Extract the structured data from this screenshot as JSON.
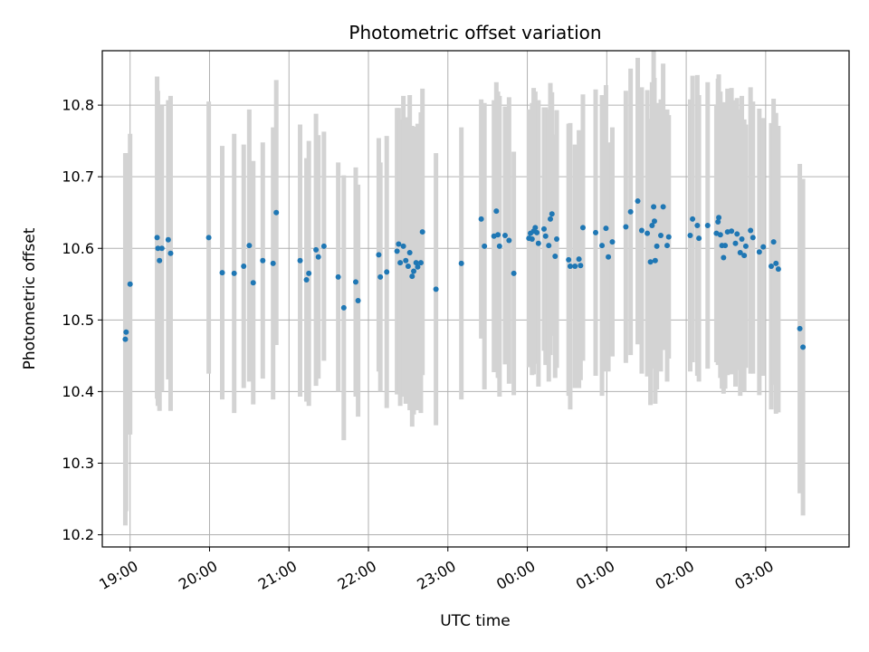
{
  "chart_data": {
    "type": "scatter",
    "title": "Photometric offset variation",
    "xlabel": "UTC time",
    "ylabel": "Photometric offset",
    "x_unit": "hours since 19:00 UTC",
    "xlim": [
      -0.35,
      9.05
    ],
    "ylim": [
      10.183,
      10.876
    ],
    "grid": true,
    "colors": {
      "point": "#1f77b4",
      "errorbar": "#d3d3d3",
      "grid": "#b0b0b0",
      "axis": "#000000"
    },
    "x_ticks": [
      {
        "x": 0,
        "label": "19:00"
      },
      {
        "x": 1,
        "label": "20:00"
      },
      {
        "x": 2,
        "label": "21:00"
      },
      {
        "x": 3,
        "label": "22:00"
      },
      {
        "x": 4,
        "label": "23:00"
      },
      {
        "x": 5,
        "label": "00:00"
      },
      {
        "x": 6,
        "label": "01:00"
      },
      {
        "x": 7,
        "label": "02:00"
      },
      {
        "x": 8,
        "label": "03:00"
      }
    ],
    "y_ticks": [
      {
        "y": 10.2,
        "label": "10.2"
      },
      {
        "y": 10.3,
        "label": "10.3"
      },
      {
        "y": 10.4,
        "label": "10.4"
      },
      {
        "y": 10.5,
        "label": "10.5"
      },
      {
        "y": 10.6,
        "label": "10.6"
      },
      {
        "y": 10.7,
        "label": "10.7"
      },
      {
        "y": 10.8,
        "label": "10.8"
      }
    ],
    "series": [
      {
        "name": "Photometric offset",
        "columns": [
          "x",
          "y",
          "err"
        ],
        "points": [
          [
            -0.06,
            10.473,
            0.26
          ],
          [
            -0.05,
            10.483,
            0.25
          ],
          [
            0.0,
            10.55,
            0.21
          ],
          [
            0.34,
            10.615,
            0.225
          ],
          [
            0.35,
            10.6,
            0.22
          ],
          [
            0.37,
            10.583,
            0.21
          ],
          [
            0.4,
            10.6,
            0.2
          ],
          [
            0.48,
            10.612,
            0.195
          ],
          [
            0.51,
            10.593,
            0.22
          ],
          [
            0.99,
            10.615,
            0.19
          ],
          [
            1.16,
            10.566,
            0.177
          ],
          [
            1.31,
            10.565,
            0.195
          ],
          [
            1.43,
            10.575,
            0.17
          ],
          [
            1.5,
            10.604,
            0.19
          ],
          [
            1.55,
            10.552,
            0.17
          ],
          [
            1.67,
            10.583,
            0.165
          ],
          [
            1.8,
            10.579,
            0.19
          ],
          [
            1.84,
            10.65,
            0.185
          ],
          [
            2.14,
            10.583,
            0.19
          ],
          [
            2.22,
            10.556,
            0.17
          ],
          [
            2.25,
            10.565,
            0.185
          ],
          [
            2.34,
            10.598,
            0.19
          ],
          [
            2.37,
            10.588,
            0.17
          ],
          [
            2.44,
            10.603,
            0.16
          ],
          [
            2.62,
            10.56,
            0.16
          ],
          [
            2.69,
            10.517,
            0.185
          ],
          [
            2.84,
            10.553,
            0.16
          ],
          [
            2.87,
            10.527,
            0.162
          ],
          [
            3.13,
            10.591,
            0.163
          ],
          [
            3.15,
            10.56,
            0.16
          ],
          [
            3.23,
            10.567,
            0.19
          ],
          [
            3.36,
            10.596,
            0.2
          ],
          [
            3.38,
            10.606,
            0.19
          ],
          [
            3.4,
            10.58,
            0.2
          ],
          [
            3.44,
            10.603,
            0.21
          ],
          [
            3.47,
            10.583,
            0.2
          ],
          [
            3.5,
            10.575,
            0.19
          ],
          [
            3.52,
            10.594,
            0.22
          ],
          [
            3.55,
            10.561,
            0.21
          ],
          [
            3.57,
            10.568,
            0.2
          ],
          [
            3.6,
            10.58,
            0.19
          ],
          [
            3.62,
            10.574,
            0.2
          ],
          [
            3.66,
            10.58,
            0.21
          ],
          [
            3.68,
            10.623,
            0.2
          ],
          [
            3.85,
            10.543,
            0.19
          ],
          [
            4.17,
            10.579,
            0.19
          ],
          [
            4.42,
            10.641,
            0.167
          ],
          [
            4.46,
            10.603,
            0.2
          ],
          [
            4.58,
            10.617,
            0.19
          ],
          [
            4.61,
            10.652,
            0.18
          ],
          [
            4.63,
            10.619,
            0.2
          ],
          [
            4.65,
            10.603,
            0.21
          ],
          [
            4.72,
            10.618,
            0.18
          ],
          [
            4.77,
            10.611,
            0.2
          ],
          [
            4.83,
            10.565,
            0.17
          ],
          [
            5.02,
            10.614,
            0.18
          ],
          [
            5.04,
            10.621,
            0.17
          ],
          [
            5.06,
            10.613,
            0.19
          ],
          [
            5.08,
            10.624,
            0.2
          ],
          [
            5.1,
            10.629,
            0.19
          ],
          [
            5.12,
            10.622,
            0.17
          ],
          [
            5.14,
            10.607,
            0.2
          ],
          [
            5.21,
            10.627,
            0.17
          ],
          [
            5.23,
            10.617,
            0.18
          ],
          [
            5.27,
            10.604,
            0.19
          ],
          [
            5.29,
            10.641,
            0.19
          ],
          [
            5.31,
            10.648,
            0.17
          ],
          [
            5.35,
            10.589,
            0.17
          ],
          [
            5.37,
            10.613,
            0.18
          ],
          [
            5.52,
            10.584,
            0.19
          ],
          [
            5.54,
            10.575,
            0.2
          ],
          [
            5.6,
            10.575,
            0.17
          ],
          [
            5.65,
            10.585,
            0.18
          ],
          [
            5.67,
            10.576,
            0.16
          ],
          [
            5.7,
            10.629,
            0.186
          ],
          [
            5.86,
            10.622,
            0.2
          ],
          [
            5.94,
            10.604,
            0.21
          ],
          [
            5.99,
            10.628,
            0.2
          ],
          [
            6.02,
            10.588,
            0.16
          ],
          [
            6.07,
            10.609,
            0.16
          ],
          [
            6.24,
            10.63,
            0.19
          ],
          [
            6.3,
            10.651,
            0.2
          ],
          [
            6.39,
            10.666,
            0.2
          ],
          [
            6.44,
            10.625,
            0.2
          ],
          [
            6.51,
            10.621,
            0.2
          ],
          [
            6.55,
            10.581,
            0.2
          ],
          [
            6.57,
            10.632,
            0.2
          ],
          [
            6.59,
            10.658,
            0.22
          ],
          [
            6.6,
            10.638,
            0.2
          ],
          [
            6.61,
            10.583,
            0.2
          ],
          [
            6.63,
            10.603,
            0.2
          ],
          [
            6.68,
            10.618,
            0.19
          ],
          [
            6.71,
            10.658,
            0.2
          ],
          [
            6.76,
            10.604,
            0.19
          ],
          [
            6.78,
            10.616,
            0.17
          ],
          [
            7.05,
            10.618,
            0.19
          ],
          [
            7.08,
            10.641,
            0.2
          ],
          [
            7.14,
            10.632,
            0.21
          ],
          [
            7.16,
            10.614,
            0.2
          ],
          [
            7.27,
            10.632,
            0.2
          ],
          [
            7.38,
            10.621,
            0.18
          ],
          [
            7.4,
            10.637,
            0.2
          ],
          [
            7.41,
            10.643,
            0.2
          ],
          [
            7.43,
            10.619,
            0.2
          ],
          [
            7.45,
            10.604,
            0.2
          ],
          [
            7.47,
            10.587,
            0.19
          ],
          [
            7.49,
            10.604,
            0.2
          ],
          [
            7.52,
            10.623,
            0.2
          ],
          [
            7.57,
            10.624,
            0.2
          ],
          [
            7.62,
            10.607,
            0.2
          ],
          [
            7.64,
            10.62,
            0.19
          ],
          [
            7.68,
            10.594,
            0.2
          ],
          [
            7.7,
            10.613,
            0.2
          ],
          [
            7.73,
            10.59,
            0.19
          ],
          [
            7.75,
            10.603,
            0.17
          ],
          [
            7.81,
            10.625,
            0.2
          ],
          [
            7.84,
            10.615,
            0.19
          ],
          [
            7.92,
            10.595,
            0.2
          ],
          [
            7.97,
            10.602,
            0.18
          ],
          [
            8.07,
            10.575,
            0.2
          ],
          [
            8.1,
            10.609,
            0.2
          ],
          [
            8.13,
            10.579,
            0.21
          ],
          [
            8.16,
            10.571,
            0.2
          ],
          [
            8.43,
            10.488,
            0.23
          ],
          [
            8.47,
            10.462,
            0.235
          ]
        ]
      }
    ]
  }
}
